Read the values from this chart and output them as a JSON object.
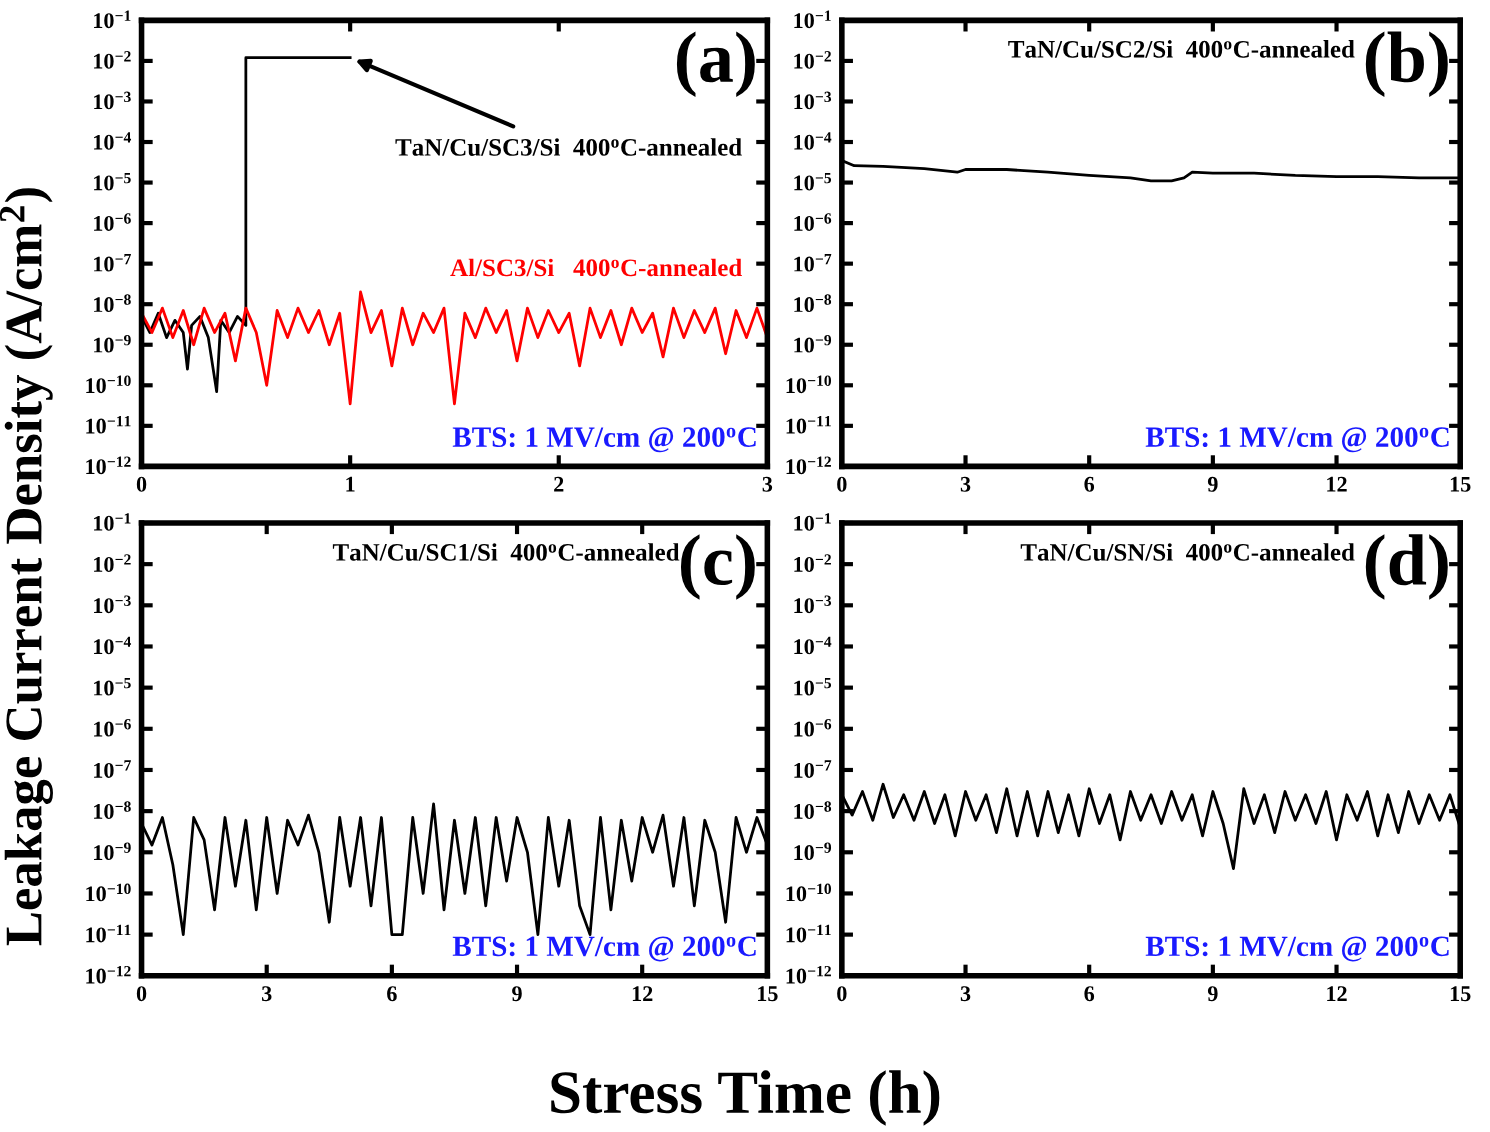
{
  "chart_data": [
    {
      "type": "line",
      "log": "y",
      "ylabel": "Leakage Current Density (A/cm$^{2}$)",
      "xlim": [
        0,
        3
      ],
      "xticks": [
        0,
        1,
        2,
        3
      ],
      "ylim": [
        1e-12,
        0.1
      ],
      "yticks": [
        {
          "value": 1e-12,
          "label": "10$^{−12}$"
        },
        {
          "value": 1e-11,
          "label": "10$^{−11}$"
        },
        {
          "value": 1e-10,
          "label": "10$^{−10}$"
        },
        {
          "value": 1e-09,
          "label": "10$^{−9}$"
        },
        {
          "value": 1e-08,
          "label": "10$^{−8}$"
        },
        {
          "value": 1e-07,
          "label": "10$^{−7}$"
        },
        {
          "value": 1e-06,
          "label": "10$^{−6}$"
        },
        {
          "value": 1e-05,
          "label": "10$^{−5}$"
        },
        {
          "value": 0.0001,
          "label": "10$^{−4}$"
        },
        {
          "value": 0.001,
          "label": "10$^{−3}$"
        },
        {
          "value": 0.01,
          "label": "10$^{−2}$"
        },
        {
          "value": 0.1,
          "label": "10$^{−1}$"
        }
      ],
      "annotations": [
        "(a)",
        "BTS: 1 MV/cm @ 200$^{o}$C",
        {
          "text": "TaN/Cu/SC3/Si  400$^{o}$C-annealed",
          "x": 1.0,
          "y": 0.012
        },
        "Al/SC3/Si   400$^{o}$C-annealed"
      ],
      "series": [
        {
          "color": "#000000",
          "x": [
            0,
            0.04,
            0.08,
            0.12,
            0.16,
            0.2,
            0.22,
            0.24,
            0.28,
            0.32,
            0.36,
            0.38,
            0.42,
            0.46,
            0.5,
            0.5,
            1.0
          ],
          "values": [
            5e-09,
            2e-09,
            6e-09,
            1.5e-09,
            4e-09,
            2e-09,
            2.5e-10,
            3e-09,
            5e-09,
            1.5e-09,
            7e-11,
            4e-09,
            2e-09,
            5e-09,
            3e-09,
            0.012,
            0.012
          ]
        },
        {
          "color": "#ff0000",
          "x": [
            0,
            0.05,
            0.1,
            0.15,
            0.2,
            0.25,
            0.3,
            0.35,
            0.4,
            0.45,
            0.5,
            0.55,
            0.6,
            0.65,
            0.7,
            0.75,
            0.8,
            0.85,
            0.9,
            0.95,
            1.0,
            1.05,
            1.1,
            1.15,
            1.2,
            1.25,
            1.3,
            1.35,
            1.4,
            1.45,
            1.5,
            1.55,
            1.6,
            1.65,
            1.7,
            1.75,
            1.8,
            1.85,
            1.9,
            1.95,
            2.0,
            2.05,
            2.1,
            2.15,
            2.2,
            2.25,
            2.3,
            2.35,
            2.4,
            2.45,
            2.5,
            2.55,
            2.6,
            2.65,
            2.7,
            2.75,
            2.8,
            2.85,
            2.9,
            2.95,
            3.0
          ],
          "values": [
            6e-09,
            2e-09,
            8e-09,
            1.5e-09,
            7e-09,
            1e-09,
            8e-09,
            2e-09,
            6e-09,
            4e-10,
            8e-09,
            2e-09,
            1e-10,
            7e-09,
            1.5e-09,
            8e-09,
            2e-09,
            7e-09,
            1e-09,
            6e-09,
            3.5e-11,
            2e-08,
            2e-09,
            7e-09,
            3e-10,
            8e-09,
            1e-09,
            6e-09,
            2e-09,
            8e-09,
            3.5e-11,
            6e-09,
            1.5e-09,
            8e-09,
            2e-09,
            7e-09,
            4e-10,
            8e-09,
            1.5e-09,
            7e-09,
            2e-09,
            6e-09,
            3e-10,
            8e-09,
            1.5e-09,
            7e-09,
            1e-09,
            8e-09,
            2e-09,
            6e-09,
            5e-10,
            8e-09,
            1.5e-09,
            7e-09,
            2e-09,
            8e-09,
            6e-10,
            7e-09,
            1.5e-09,
            8e-09,
            1.5e-09
          ]
        }
      ]
    },
    {
      "type": "line",
      "log": "y",
      "xlim": [
        0,
        15
      ],
      "xticks": [
        0,
        3,
        6,
        9,
        12,
        15
      ],
      "ylim": [
        1e-12,
        0.1
      ],
      "yticks": [
        {
          "value": 1e-12,
          "label": "10$^{−12}$"
        },
        {
          "value": 1e-11,
          "label": "10$^{−11}$"
        },
        {
          "value": 1e-10,
          "label": "10$^{−10}$"
        },
        {
          "value": 1e-09,
          "label": "10$^{−9}$"
        },
        {
          "value": 1e-08,
          "label": "10$^{−8}$"
        },
        {
          "value": 1e-07,
          "label": "10$^{−7}$"
        },
        {
          "value": 1e-06,
          "label": "10$^{−6}$"
        },
        {
          "value": 1e-05,
          "label": "10$^{−5}$"
        },
        {
          "value": 0.0001,
          "label": "10$^{−4}$"
        },
        {
          "value": 0.001,
          "label": "10$^{−3}$"
        },
        {
          "value": 0.01,
          "label": "10$^{−2}$"
        },
        {
          "value": 0.1,
          "label": "10$^{−1}$"
        }
      ],
      "annotations": [
        "(b)",
        "BTS: 1 MV/cm @ 200$^{o}$C",
        "TaN/Cu/SC2/Si  400$^{o}$C-annealed"
      ],
      "series": [
        {
          "color": "#000000",
          "x": [
            0,
            0.3,
            1,
            2,
            2.8,
            3,
            4,
            5,
            6,
            7,
            7.5,
            8,
            8.3,
            8.5,
            9,
            10,
            11,
            12,
            13,
            14,
            15
          ],
          "values": [
            3.5e-05,
            2.6e-05,
            2.5e-05,
            2.2e-05,
            1.8e-05,
            2.1e-05,
            2.1e-05,
            1.8e-05,
            1.5e-05,
            1.3e-05,
            1.1e-05,
            1.1e-05,
            1.3e-05,
            1.8e-05,
            1.7e-05,
            1.7e-05,
            1.5e-05,
            1.4e-05,
            1.4e-05,
            1.3e-05,
            1.3e-05
          ]
        }
      ]
    },
    {
      "type": "line",
      "log": "y",
      "xlabel": "Stress Time (h)",
      "xlim": [
        0,
        15
      ],
      "xticks": [
        0,
        3,
        6,
        9,
        12,
        15
      ],
      "ylim": [
        1e-12,
        0.1
      ],
      "yticks": [
        {
          "value": 1e-12,
          "label": "10$^{−12}$"
        },
        {
          "value": 1e-11,
          "label": "10$^{−11}$"
        },
        {
          "value": 1e-10,
          "label": "10$^{−10}$"
        },
        {
          "value": 1e-09,
          "label": "10$^{−9}$"
        },
        {
          "value": 1e-08,
          "label": "10$^{−8}$"
        },
        {
          "value": 1e-07,
          "label": "10$^{−7}$"
        },
        {
          "value": 1e-06,
          "label": "10$^{−6}$"
        },
        {
          "value": 1e-05,
          "label": "10$^{−5}$"
        },
        {
          "value": 0.0001,
          "label": "10$^{−4}$"
        },
        {
          "value": 0.001,
          "label": "10$^{−3}$"
        },
        {
          "value": 0.01,
          "label": "10$^{−2}$"
        },
        {
          "value": 0.1,
          "label": "10$^{−1}$"
        }
      ],
      "annotations": [
        "(c)",
        "BTS: 1 MV/cm @ 200$^{o}$C",
        "TaN/Cu/SC1/Si  400$^{o}$C-annealed"
      ],
      "series": [
        {
          "color": "#000000",
          "x": [
            0,
            0.25,
            0.5,
            0.75,
            1.0,
            1.25,
            1.5,
            1.75,
            2.0,
            2.25,
            2.5,
            2.75,
            3.0,
            3.25,
            3.5,
            3.75,
            4.0,
            4.25,
            4.5,
            4.75,
            5.0,
            5.25,
            5.5,
            5.75,
            6.0,
            6.25,
            6.5,
            6.75,
            7.0,
            7.25,
            7.5,
            7.75,
            8.0,
            8.25,
            8.5,
            8.75,
            9.0,
            9.25,
            9.5,
            9.75,
            10.0,
            10.25,
            10.5,
            10.75,
            11.0,
            11.25,
            11.5,
            11.75,
            12.0,
            12.25,
            12.5,
            12.75,
            13.0,
            13.25,
            13.5,
            13.75,
            14.0,
            14.25,
            14.5,
            14.75,
            15.0
          ],
          "values": [
            5e-09,
            1.5e-09,
            7e-09,
            5e-10,
            1e-11,
            7e-09,
            2e-09,
            4e-11,
            7e-09,
            1.5e-10,
            6e-09,
            4e-11,
            7e-09,
            1e-10,
            6e-09,
            1.5e-09,
            8e-09,
            1e-09,
            2e-11,
            7e-09,
            1.5e-10,
            7e-09,
            5e-11,
            7e-09,
            1e-11,
            1e-11,
            7e-09,
            1e-10,
            1.5e-08,
            4e-11,
            6e-09,
            1e-10,
            7e-09,
            5e-11,
            7e-09,
            2e-10,
            7e-09,
            1e-09,
            1e-11,
            7e-09,
            1.5e-10,
            6e-09,
            5e-11,
            1e-11,
            7e-09,
            4e-11,
            6e-09,
            2e-10,
            7e-09,
            1e-09,
            8e-09,
            1.5e-10,
            7e-09,
            5e-11,
            6e-09,
            1e-09,
            2e-11,
            7e-09,
            1e-09,
            7e-09,
            1.5e-09
          ]
        }
      ]
    },
    {
      "type": "line",
      "log": "y",
      "xlim": [
        0,
        15
      ],
      "xticks": [
        0,
        3,
        6,
        9,
        12,
        15
      ],
      "ylim": [
        1e-12,
        0.1
      ],
      "yticks": [
        {
          "value": 1e-12,
          "label": "10$^{−12}$"
        },
        {
          "value": 1e-11,
          "label": "10$^{−11}$"
        },
        {
          "value": 1e-10,
          "label": "10$^{−10}$"
        },
        {
          "value": 1e-09,
          "label": "10$^{−9}$"
        },
        {
          "value": 1e-08,
          "label": "10$^{−8}$"
        },
        {
          "value": 1e-07,
          "label": "10$^{−7}$"
        },
        {
          "value": 1e-06,
          "label": "10$^{−6}$"
        },
        {
          "value": 1e-05,
          "label": "10$^{−5}$"
        },
        {
          "value": 0.0001,
          "label": "10$^{−4}$"
        },
        {
          "value": 0.001,
          "label": "10$^{−3}$"
        },
        {
          "value": 0.01,
          "label": "10$^{−2}$"
        },
        {
          "value": 0.1,
          "label": "10$^{−1}$"
        }
      ],
      "annotations": [
        "(d)",
        "BTS: 1 MV/cm @ 200$^{o}$C",
        "TaN/Cu/SN/Si  400$^{o}$C-annealed"
      ],
      "series": [
        {
          "color": "#000000",
          "x": [
            0,
            0.25,
            0.5,
            0.75,
            1.0,
            1.25,
            1.5,
            1.75,
            2.0,
            2.25,
            2.5,
            2.75,
            3.0,
            3.25,
            3.5,
            3.75,
            4.0,
            4.25,
            4.5,
            4.75,
            5.0,
            5.25,
            5.5,
            5.75,
            6.0,
            6.25,
            6.5,
            6.75,
            7.0,
            7.25,
            7.5,
            7.75,
            8.0,
            8.25,
            8.5,
            8.75,
            9.0,
            9.25,
            9.5,
            9.75,
            10.0,
            10.25,
            10.5,
            10.75,
            11.0,
            11.25,
            11.5,
            11.75,
            12.0,
            12.25,
            12.5,
            12.75,
            13.0,
            13.25,
            13.5,
            13.75,
            14.0,
            14.25,
            14.5,
            14.75,
            15.0
          ],
          "values": [
            2.5e-08,
            8e-09,
            3e-08,
            6e-09,
            4.5e-08,
            7e-09,
            2.5e-08,
            6e-09,
            3e-08,
            5e-09,
            2.5e-08,
            2.5e-09,
            3e-08,
            6e-09,
            2.5e-08,
            3e-09,
            3.5e-08,
            2.5e-09,
            3e-08,
            2.5e-09,
            3e-08,
            3e-09,
            2.5e-08,
            2.5e-09,
            3.5e-08,
            5e-09,
            2.5e-08,
            2e-09,
            3e-08,
            6e-09,
            2.5e-08,
            5e-09,
            3e-08,
            6e-09,
            2.5e-08,
            2.5e-09,
            3e-08,
            5e-09,
            4e-10,
            3.5e-08,
            5e-09,
            2.5e-08,
            3e-09,
            3e-08,
            6e-09,
            2.5e-08,
            5e-09,
            3e-08,
            2e-09,
            2.5e-08,
            6e-09,
            3e-08,
            2.5e-09,
            2.5e-08,
            3e-09,
            3e-08,
            5e-09,
            2.5e-08,
            6e-09,
            2.5e-08,
            4e-09
          ]
        }
      ]
    }
  ]
}
